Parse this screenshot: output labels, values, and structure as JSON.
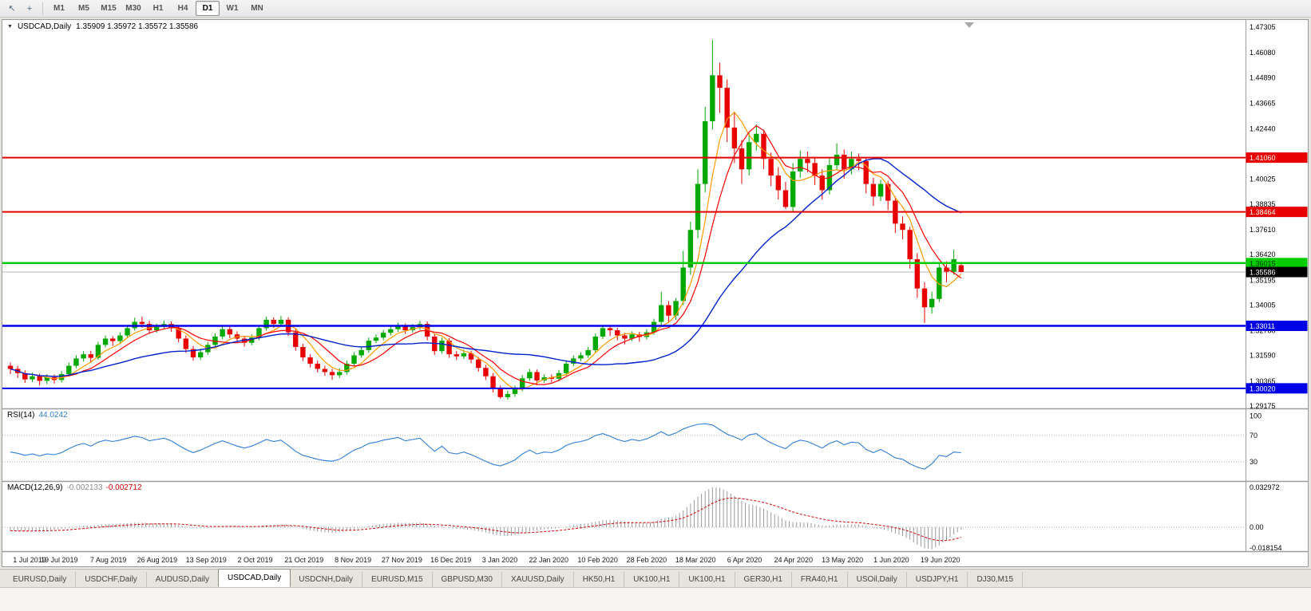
{
  "toolbar": {
    "icons": [
      {
        "name": "cursor-tool-icon",
        "glyph": "↖"
      },
      {
        "name": "crosshair-tool-icon",
        "glyph": "+"
      }
    ],
    "timeframes": [
      "M1",
      "M5",
      "M15",
      "M30",
      "H1",
      "H4",
      "D1",
      "W1",
      "MN"
    ],
    "active_timeframe": "D1"
  },
  "chart": {
    "title": "USDCAD,Daily",
    "ohlc": "1.35909 1.35972 1.35572 1.35586"
  },
  "rsi": {
    "name": "RSI(14)",
    "value": "44.0242",
    "color": "#2f7ed8",
    "levels": [
      {
        "label": "100",
        "v": 100
      },
      {
        "label": "70",
        "v": 70
      },
      {
        "label": "30",
        "v": 30
      }
    ]
  },
  "macd": {
    "name": "MACD(12,26,9)",
    "main_value": "-0.002133",
    "signal_value": "-0.002712",
    "axis": [
      {
        "label": "0.032972",
        "v": 0.032972
      },
      {
        "label": "0.00",
        "v": 0
      },
      {
        "label": "-0.018154",
        "v": -0.018154
      }
    ]
  },
  "price_axis": {
    "ticks": [
      "1.47305",
      "1.46080",
      "1.44890",
      "1.43665",
      "1.42440",
      "1.40025",
      "1.38835",
      "1.37610",
      "1.36420",
      "1.35195",
      "1.34005",
      "1.32780",
      "1.31590",
      "1.30365",
      "1.29175"
    ]
  },
  "levels": [
    {
      "value": 1.4106,
      "label": "1.41060",
      "color": "#e60000",
      "text_color": "#ffffff",
      "width": 2
    },
    {
      "value": 1.38464,
      "label": "1.38464",
      "color": "#e60000",
      "text_color": "#ffffff",
      "width": 2
    },
    {
      "value": 1.36015,
      "label": "1.36015",
      "color": "#00cc00",
      "text_color": "#003300",
      "width": 2.5
    },
    {
      "value": 1.33011,
      "label": "1.33011",
      "color": "#0000e6",
      "text_color": "#ffffff",
      "width": 2.5
    },
    {
      "value": 1.3002,
      "label": "1.30020",
      "color": "#0000e6",
      "text_color": "#ffffff",
      "width": 2
    }
  ],
  "current_price": {
    "value": 1.35586,
    "label": "1.35586"
  },
  "date_axis": [
    "1 Jul 2019",
    "19 Jul 2019",
    "7 Aug 2019",
    "26 Aug 2019",
    "13 Sep 2019",
    "2 Oct 2019",
    "21 Oct 2019",
    "8 Nov 2019",
    "27 Nov 2019",
    "16 Dec 2019",
    "3 Jan 2020",
    "22 Jan 2020",
    "10 Feb 2020",
    "28 Feb 2020",
    "18 Mar 2020",
    "6 Apr 2020",
    "24 Apr 2020",
    "13 May 2020",
    "1 Jun 2020",
    "19 Jun 2020"
  ],
  "tabs": {
    "active_index": 3,
    "items": [
      "EURUSD,Daily",
      "USDCHF,Daily",
      "AUDUSD,Daily",
      "USDCAD,Daily",
      "USDCNH,Daily",
      "EURUSD,M15",
      "GBPUSD,M30",
      "XAUUSD,Daily",
      "HK50,H1",
      "UK100,H1",
      "UK100,H1",
      "GER30,H1",
      "FRA40,H1",
      "USOil,Daily",
      "USDJPY,H1",
      "DJ30,M15"
    ]
  },
  "chart_data": {
    "type": "candlestick",
    "symbol": "USDCAD",
    "timeframe": "Daily",
    "price_range": [
      1.29175,
      1.47305
    ],
    "colors": {
      "up": "#00a800",
      "down": "#e80000",
      "histogram": "#9a9a9a",
      "signal": "#d40000"
    },
    "ma": [
      {
        "name": "fast-ma",
        "period": 5,
        "color": "#ff9900",
        "width": 1.2
      },
      {
        "name": "mid-ma",
        "period": 8,
        "color": "#ff0000",
        "width": 1.2
      },
      {
        "name": "slow-ma",
        "period": 25,
        "color": "#0022cc",
        "width": 1.4
      }
    ],
    "signal_period": 9,
    "candles": [
      [
        1.311,
        1.3125,
        1.307,
        1.3095
      ],
      [
        1.3095,
        1.311,
        1.3052,
        1.3075
      ],
      [
        1.3075,
        1.3088,
        1.3028,
        1.3045
      ],
      [
        1.3045,
        1.3078,
        1.3032,
        1.306
      ],
      [
        1.306,
        1.3072,
        1.3016,
        1.3038
      ],
      [
        1.3038,
        1.307,
        1.3022,
        1.3055
      ],
      [
        1.3055,
        1.3068,
        1.3025,
        1.3042
      ],
      [
        1.3042,
        1.3085,
        1.303,
        1.307
      ],
      [
        1.307,
        1.3125,
        1.3058,
        1.311
      ],
      [
        1.311,
        1.316,
        1.3098,
        1.3145
      ],
      [
        1.3145,
        1.318,
        1.313,
        1.3165
      ],
      [
        1.3165,
        1.3182,
        1.3125,
        1.3148
      ],
      [
        1.3148,
        1.3225,
        1.3138,
        1.321
      ],
      [
        1.321,
        1.3255,
        1.3198,
        1.324
      ],
      [
        1.324,
        1.3252,
        1.3205,
        1.3228
      ],
      [
        1.3228,
        1.327,
        1.3215,
        1.3255
      ],
      [
        1.3255,
        1.3305,
        1.3245,
        1.329
      ],
      [
        1.329,
        1.334,
        1.3278,
        1.332
      ],
      [
        1.332,
        1.3345,
        1.3292,
        1.331
      ],
      [
        1.331,
        1.3325,
        1.3262,
        1.328
      ],
      [
        1.328,
        1.3312,
        1.3268,
        1.3296
      ],
      [
        1.3296,
        1.3328,
        1.3284,
        1.331
      ],
      [
        1.331,
        1.3322,
        1.3272,
        1.329
      ],
      [
        1.329,
        1.3302,
        1.3222,
        1.324
      ],
      [
        1.324,
        1.3255,
        1.3172,
        1.319
      ],
      [
        1.319,
        1.3205,
        1.3134,
        1.315
      ],
      [
        1.315,
        1.3192,
        1.3138,
        1.3175
      ],
      [
        1.3175,
        1.3225,
        1.3162,
        1.321
      ],
      [
        1.321,
        1.3265,
        1.3198,
        1.325
      ],
      [
        1.325,
        1.33,
        1.3238,
        1.3285
      ],
      [
        1.3285,
        1.3298,
        1.3242,
        1.326
      ],
      [
        1.326,
        1.3275,
        1.3222,
        1.324
      ],
      [
        1.324,
        1.3254,
        1.3202,
        1.322
      ],
      [
        1.322,
        1.326,
        1.3208,
        1.3245
      ],
      [
        1.3245,
        1.3305,
        1.3232,
        1.329
      ],
      [
        1.329,
        1.3345,
        1.3278,
        1.333
      ],
      [
        1.333,
        1.3342,
        1.3292,
        1.331
      ],
      [
        1.331,
        1.3348,
        1.3298,
        1.333
      ],
      [
        1.333,
        1.3342,
        1.3252,
        1.327
      ],
      [
        1.327,
        1.3285,
        1.3182,
        1.32
      ],
      [
        1.32,
        1.3215,
        1.3132,
        1.315
      ],
      [
        1.315,
        1.3165,
        1.3102,
        1.312
      ],
      [
        1.312,
        1.3135,
        1.3078,
        1.3095
      ],
      [
        1.3095,
        1.311,
        1.3062,
        1.308
      ],
      [
        1.308,
        1.3095,
        1.3042,
        1.3065
      ],
      [
        1.3065,
        1.3098,
        1.3052,
        1.308
      ],
      [
        1.308,
        1.3135,
        1.3068,
        1.312
      ],
      [
        1.312,
        1.3175,
        1.3108,
        1.316
      ],
      [
        1.316,
        1.32,
        1.3148,
        1.3185
      ],
      [
        1.3185,
        1.3245,
        1.3172,
        1.323
      ],
      [
        1.323,
        1.326,
        1.3218,
        1.3245
      ],
      [
        1.3245,
        1.3282,
        1.3232,
        1.3268
      ],
      [
        1.3268,
        1.33,
        1.3255,
        1.3285
      ],
      [
        1.3285,
        1.3315,
        1.3272,
        1.33
      ],
      [
        1.33,
        1.3312,
        1.3262,
        1.328
      ],
      [
        1.328,
        1.331,
        1.3268,
        1.3295
      ],
      [
        1.3295,
        1.3325,
        1.3282,
        1.331
      ],
      [
        1.331,
        1.3322,
        1.3232,
        1.325
      ],
      [
        1.325,
        1.3265,
        1.3162,
        1.318
      ],
      [
        1.318,
        1.3245,
        1.3168,
        1.323
      ],
      [
        1.323,
        1.3242,
        1.3148,
        1.3165
      ],
      [
        1.3165,
        1.318,
        1.3138,
        1.3155
      ],
      [
        1.3155,
        1.3188,
        1.3142,
        1.317
      ],
      [
        1.317,
        1.3182,
        1.3122,
        1.314
      ],
      [
        1.314,
        1.3152,
        1.3082,
        1.31
      ],
      [
        1.31,
        1.3115,
        1.3042,
        1.306
      ],
      [
        1.306,
        1.3075,
        1.2982,
        1.3
      ],
      [
        1.3,
        1.3015,
        1.2952,
        1.296
      ],
      [
        1.296,
        1.2992,
        1.2948,
        1.2975
      ],
      [
        1.2975,
        1.3015,
        1.2962,
        1.3
      ],
      [
        1.3,
        1.3065,
        1.2988,
        1.305
      ],
      [
        1.305,
        1.3095,
        1.3038,
        1.308
      ],
      [
        1.308,
        1.3092,
        1.3022,
        1.304
      ],
      [
        1.304,
        1.307,
        1.3028,
        1.3055
      ],
      [
        1.3055,
        1.3068,
        1.303,
        1.3048
      ],
      [
        1.3048,
        1.309,
        1.3036,
        1.3075
      ],
      [
        1.3075,
        1.3135,
        1.3062,
        1.312
      ],
      [
        1.312,
        1.316,
        1.3108,
        1.3145
      ],
      [
        1.3145,
        1.3175,
        1.3132,
        1.316
      ],
      [
        1.316,
        1.32,
        1.3148,
        1.3185
      ],
      [
        1.3185,
        1.3265,
        1.3172,
        1.325
      ],
      [
        1.325,
        1.3305,
        1.3238,
        1.329
      ],
      [
        1.329,
        1.3302,
        1.3252,
        1.328
      ],
      [
        1.328,
        1.3292,
        1.3232,
        1.3255
      ],
      [
        1.3255,
        1.3268,
        1.3212,
        1.324
      ],
      [
        1.324,
        1.3275,
        1.3228,
        1.326
      ],
      [
        1.326,
        1.3272,
        1.3225,
        1.3248
      ],
      [
        1.3248,
        1.3285,
        1.3236,
        1.327
      ],
      [
        1.327,
        1.3335,
        1.3258,
        1.332
      ],
      [
        1.332,
        1.3464,
        1.3305,
        1.34
      ],
      [
        1.34,
        1.342,
        1.3315,
        1.335
      ],
      [
        1.335,
        1.3435,
        1.333,
        1.342
      ],
      [
        1.342,
        1.366,
        1.34,
        1.358
      ],
      [
        1.358,
        1.38,
        1.3545,
        1.376
      ],
      [
        1.376,
        1.405,
        1.372,
        1.398
      ],
      [
        1.398,
        1.435,
        1.394,
        1.428
      ],
      [
        1.428,
        1.4669,
        1.424,
        1.45
      ],
      [
        1.45,
        1.456,
        1.432,
        1.444
      ],
      [
        1.444,
        1.448,
        1.418,
        1.425
      ],
      [
        1.425,
        1.432,
        1.408,
        1.415
      ],
      [
        1.415,
        1.419,
        1.398,
        1.405
      ],
      [
        1.405,
        1.423,
        1.402,
        1.418
      ],
      [
        1.418,
        1.4265,
        1.414,
        1.422
      ],
      [
        1.422,
        1.424,
        1.405,
        1.41
      ],
      [
        1.41,
        1.413,
        1.397,
        1.402
      ],
      [
        1.402,
        1.406,
        1.3905,
        1.395
      ],
      [
        1.395,
        1.399,
        1.386,
        1.387
      ],
      [
        1.387,
        1.408,
        1.385,
        1.404
      ],
      [
        1.404,
        1.414,
        1.401,
        1.41
      ],
      [
        1.41,
        1.4135,
        1.4035,
        1.408
      ],
      [
        1.408,
        1.411,
        1.3975,
        1.402
      ],
      [
        1.402,
        1.405,
        1.3905,
        1.395
      ],
      [
        1.395,
        1.4105,
        1.393,
        1.407
      ],
      [
        1.407,
        1.4175,
        1.4045,
        1.412
      ],
      [
        1.412,
        1.4145,
        1.4005,
        1.405
      ],
      [
        1.405,
        1.4135,
        1.4025,
        1.41
      ],
      [
        1.41,
        1.4125,
        1.4045,
        1.409
      ],
      [
        1.409,
        1.4108,
        1.3935,
        1.398
      ],
      [
        1.398,
        1.401,
        1.3875,
        1.392
      ],
      [
        1.392,
        1.4,
        1.3898,
        1.398
      ],
      [
        1.398,
        1.3995,
        1.3855,
        1.39
      ],
      [
        1.39,
        1.392,
        1.3745,
        1.379
      ],
      [
        1.379,
        1.3825,
        1.3715,
        1.376
      ],
      [
        1.376,
        1.3775,
        1.3575,
        1.362
      ],
      [
        1.362,
        1.365,
        1.3435,
        1.348
      ],
      [
        1.348,
        1.351,
        1.3315,
        1.339
      ],
      [
        1.339,
        1.3465,
        1.336,
        1.343
      ],
      [
        1.343,
        1.3605,
        1.3415,
        1.358
      ],
      [
        1.358,
        1.361,
        1.351,
        1.356
      ],
      [
        1.356,
        1.3665,
        1.3545,
        1.362
      ],
      [
        1.3591,
        1.3597,
        1.3557,
        1.3559
      ]
    ],
    "rsi": [
      45,
      43,
      40,
      42,
      39,
      42,
      41,
      44,
      50,
      55,
      58,
      54,
      60,
      63,
      61,
      63,
      66,
      69,
      67,
      62,
      64,
      66,
      62,
      55,
      49,
      44,
      48,
      53,
      58,
      62,
      58,
      54,
      51,
      54,
      59,
      64,
      61,
      63,
      55,
      46,
      40,
      37,
      34,
      32,
      31,
      34,
      41,
      48,
      52,
      58,
      60,
      63,
      65,
      67,
      62,
      64,
      66,
      56,
      46,
      54,
      44,
      42,
      45,
      41,
      36,
      31,
      26,
      24,
      28,
      33,
      42,
      48,
      42,
      45,
      44,
      48,
      55,
      59,
      61,
      64,
      70,
      73,
      69,
      64,
      61,
      64,
      62,
      65,
      70,
      76,
      70,
      74,
      80,
      84,
      87,
      88,
      86,
      79,
      72,
      68,
      63,
      71,
      73,
      65,
      59,
      54,
      50,
      59,
      63,
      61,
      56,
      51,
      58,
      62,
      56,
      60,
      59,
      49,
      44,
      49,
      43,
      36,
      34,
      27,
      22,
      19,
      27,
      40,
      38,
      45,
      44
    ],
    "macd_hist": [
      -0.003,
      -0.0032,
      -0.0034,
      -0.003,
      -0.0028,
      -0.0024,
      -0.002,
      -0.0014,
      -0.0006,
      0.0004,
      0.0012,
      0.0014,
      0.002,
      0.0026,
      0.0028,
      0.003,
      0.0034,
      0.0038,
      0.0038,
      0.0034,
      0.0032,
      0.0032,
      0.0028,
      0.0018,
      0.0006,
      -0.0006,
      -0.001,
      -0.0008,
      0.0,
      0.0008,
      0.001,
      0.0008,
      0.0004,
      0.0004,
      0.001,
      0.0018,
      0.002,
      0.0024,
      0.0018,
      0.0004,
      -0.0012,
      -0.0026,
      -0.0036,
      -0.0042,
      -0.0046,
      -0.0042,
      -0.003,
      -0.0016,
      -0.0004,
      0.001,
      0.002,
      0.0028,
      0.0034,
      0.0038,
      0.0036,
      0.0036,
      0.0038,
      0.0028,
      0.0012,
      0.0006,
      -0.0006,
      -0.0014,
      -0.0016,
      -0.0022,
      -0.0032,
      -0.0044,
      -0.0058,
      -0.007,
      -0.0072,
      -0.0066,
      -0.005,
      -0.0034,
      -0.0026,
      -0.0018,
      -0.0014,
      -0.0006,
      0.0006,
      0.0018,
      0.0026,
      0.0034,
      0.0046,
      0.0058,
      0.006,
      0.0056,
      0.0048,
      0.0044,
      0.0038,
      0.0038,
      0.0046,
      0.0072,
      0.008,
      0.0096,
      0.014,
      0.0196,
      0.0252,
      0.03,
      0.033,
      0.0328,
      0.0298,
      0.0258,
      0.0216,
      0.019,
      0.0176,
      0.0154,
      0.0124,
      0.0092,
      0.0058,
      0.0044,
      0.004,
      0.0038,
      0.0028,
      0.0012,
      0.0014,
      0.0022,
      0.002,
      0.0024,
      0.0024,
      0.001,
      -0.0008,
      -0.0014,
      -0.0028,
      -0.0052,
      -0.0072,
      -0.0105,
      -0.0145,
      -0.0175,
      -0.0182,
      -0.015,
      -0.0105,
      -0.006,
      -0.0021
    ]
  }
}
